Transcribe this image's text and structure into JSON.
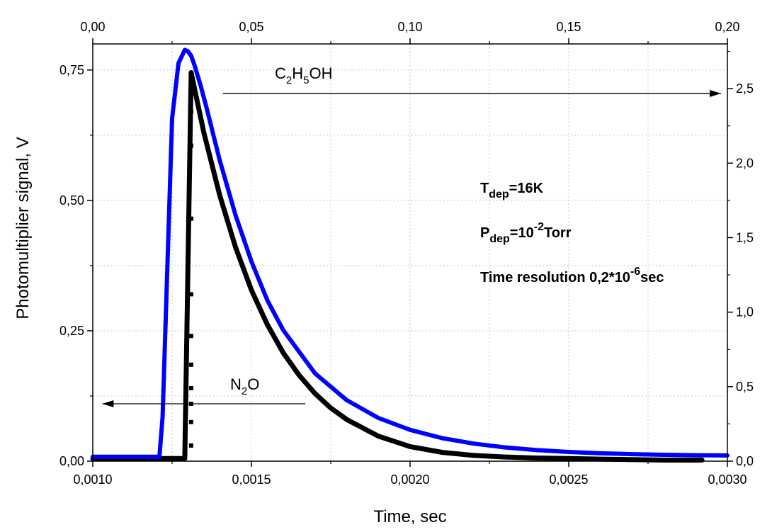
{
  "chart_data": {
    "type": "line",
    "xlabel": "Time, sec",
    "ylabel": "Photomultiplier signal, V",
    "xlim": [
      0.001,
      0.003
    ],
    "ylim": [
      0.0,
      0.8
    ],
    "x_top_lim": [
      0.0,
      0.2
    ],
    "y_right_lim": [
      0.0,
      2.8
    ],
    "x_ticks": [
      "0,0010",
      "0,0015",
      "0,0020",
      "0,0025",
      "0,0030"
    ],
    "x_tick_values": [
      0.001,
      0.0015,
      0.002,
      0.0025,
      0.003
    ],
    "y_ticks": [
      "0,00",
      "0,25",
      "0,50",
      "0,75"
    ],
    "y_tick_values": [
      0.0,
      0.25,
      0.5,
      0.75
    ],
    "x_top_ticks": [
      "0,00",
      "0,05",
      "0,10",
      "0,15",
      "0,20"
    ],
    "x_top_tick_values": [
      0.0,
      0.05,
      0.1,
      0.15,
      0.2
    ],
    "y_right_ticks": [
      "0,0",
      "0,5",
      "1,0",
      "1,5",
      "2,0",
      "2,5"
    ],
    "y_right_tick_values": [
      0.0,
      0.5,
      1.0,
      1.5,
      2.0,
      2.5
    ],
    "grid": true,
    "series": [
      {
        "name": "N2O",
        "axis": "bottom-left",
        "color": "#000000",
        "x": [
          0.001,
          0.0012,
          0.00129,
          0.00131,
          0.00135,
          0.0014,
          0.00145,
          0.0015,
          0.00155,
          0.0016,
          0.00165,
          0.0017,
          0.00175,
          0.0018,
          0.0019,
          0.002,
          0.0021,
          0.0022,
          0.0023,
          0.0024,
          0.0025,
          0.0026,
          0.0027,
          0.0028,
          0.00292
        ],
        "y": [
          0.005,
          0.005,
          0.005,
          0.745,
          0.63,
          0.51,
          0.41,
          0.328,
          0.262,
          0.208,
          0.165,
          0.13,
          0.102,
          0.08,
          0.048,
          0.028,
          0.017,
          0.011,
          0.008,
          0.006,
          0.005,
          0.004,
          0.003,
          0.002,
          0.002
        ],
        "dropline_x": 0.00131,
        "dropline_y": [
          0.03,
          0.075,
          0.11,
          0.14,
          0.185,
          0.24,
          0.32,
          0.465,
          0.605,
          0.67
        ]
      },
      {
        "name": "C2H5OH",
        "axis": "top-right",
        "color": "#0000ff",
        "x": [
          0.0,
          0.021,
          0.022,
          0.0235,
          0.025,
          0.027,
          0.029,
          0.03,
          0.031,
          0.032,
          0.034,
          0.036,
          0.038,
          0.04,
          0.045,
          0.05,
          0.055,
          0.06,
          0.07,
          0.08,
          0.09,
          0.1,
          0.11,
          0.12,
          0.13,
          0.14,
          0.15,
          0.16,
          0.17,
          0.18,
          0.19,
          0.2
        ],
        "y": [
          0.03,
          0.03,
          0.3,
          1.3,
          2.3,
          2.67,
          2.76,
          2.75,
          2.72,
          2.66,
          2.52,
          2.36,
          2.19,
          2.02,
          1.65,
          1.34,
          1.08,
          0.88,
          0.59,
          0.41,
          0.29,
          0.21,
          0.155,
          0.118,
          0.092,
          0.074,
          0.062,
          0.053,
          0.047,
          0.043,
          0.04,
          0.038
        ]
      }
    ],
    "annotations": {
      "n2o": {
        "base": "N",
        "sub": "2",
        "rest": "O",
        "arrow": "left",
        "arrow_y": 0.11,
        "arrow_x": [
          0.00103,
          0.00167
        ]
      },
      "c2h5oh": {
        "p1": "C",
        "s1": "2",
        "p2": "H",
        "s2": "5",
        "p3": "OH",
        "arrow": "right",
        "arrow_y": 0.705,
        "arrow_x": [
          0.00141,
          0.00298
        ]
      },
      "tdep": {
        "base": "T",
        "sub": "dep",
        "rest": "=16K"
      },
      "pdep": {
        "base": "P",
        "sub": "dep",
        "mid": "=10",
        "sup": "-2",
        "rest": "Torr"
      },
      "time_resolution": {
        "base": "Time resolution 0,2*10",
        "sup": "-6",
        "rest": "sec"
      }
    }
  }
}
